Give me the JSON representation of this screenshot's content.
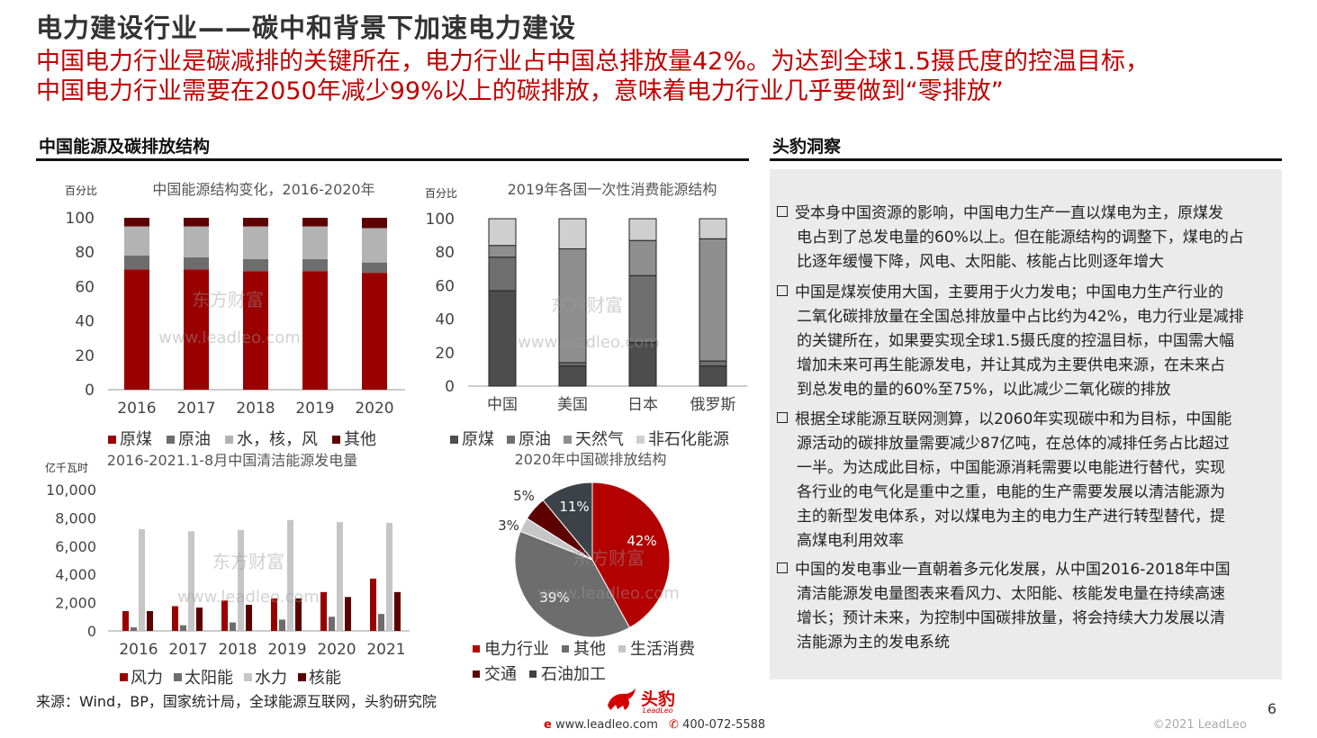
{
  "header": {
    "title": "电力建设行业——碳中和背景下加速电力建设",
    "subtitle_line1": "中国电力行业是碳减排的关键所在，电力行业占中国总排放量42%。为达到全球1.5摄氏度的控温目标，",
    "subtitle_line2": "中国电力行业需要在2050年减少99%以上的碳排放，意味着电力行业几乎要做到“零排放”"
  },
  "left_section": {
    "title": "中国能源及碳排放结构"
  },
  "right_section": {
    "title": "头豹洞察"
  },
  "watermark": {
    "cn": "东方财富",
    "url": "www.leadleo.com"
  },
  "colors": {
    "coal": "#9b0000",
    "oil": "#6d6d6d",
    "hydro": "#b3b3b3",
    "other": "#5c0000",
    "accent": "#c00000"
  },
  "insights": [
    {
      "lines": [
        "受本身中国资源的影响，中国电力生产一直以煤电为主，原煤发",
        "电占到了总发电量的60%以上。但在能源结构的调整下，煤电的占",
        "比逐年缓慢下降，风电、太阳能、核能占比则逐年增大"
      ]
    },
    {
      "lines": [
        "中国是煤炭使用大国，主要用于火力发电；中国电力生产行业的",
        "二氧化碳排放量在全国总排放量中占比约为42%，电力行业是减排",
        "的关键所在，如果要实现全球1.5摄氏度的控温目标，中国需大幅",
        "增加未来可再生能源发电，并让其成为主要供电来源，在未来占",
        "到总发电的量的60%至75%，以此减少二氧化碳的排放"
      ]
    },
    {
      "lines": [
        "根据全球能源互联网测算，以2060年实现碳中和为目标，中国能",
        "源活动的碳排放量需要减少87亿吨，在总体的减排任务占比超过",
        "一半。为达成此目标，中国能源消耗需要以电能进行替代，实现",
        "各行业的电气化是重中之重，电能的生产需要发展以清洁能源为",
        "主的新型发电体系，对以煤电为主的电力生产进行转型替代，提",
        "高煤电利用效率"
      ]
    },
    {
      "lines": [
        "中国的发电事业一直朝着多元化发展，从中国2016-2018年中国",
        "清洁能源发电量图表来看风力、太阳能、核能发电量在持续高速",
        "增长；预计未来，为控制中国碳排放量，将会持续大力发展以清",
        "洁能源为主的发电系统"
      ]
    }
  ],
  "footer": {
    "source": "来源：Wind，BP，国家统计局，全球能源互联网，头豹研究院",
    "logo_text": "头豹",
    "logo_sub": "LeadLeo",
    "website": "www.leadleo.com",
    "phone": "400-072-5588",
    "page": "6",
    "copyright": "©2021 LeadLeo"
  },
  "chart_data": [
    {
      "type": "bar",
      "stacked": true,
      "title": "中国能源结构变化，2016-2020年",
      "ylabel": "百分比",
      "ylim": [
        0,
        100
      ],
      "yticks": [
        0,
        20,
        40,
        60,
        80,
        100
      ],
      "categories": [
        "2016",
        "2017",
        "2018",
        "2019",
        "2020"
      ],
      "series": [
        {
          "name": "原煤",
          "color": "#9b0000",
          "values": [
            70,
            70,
            69,
            69,
            68
          ]
        },
        {
          "name": "原油",
          "color": "#6d6d6d",
          "values": [
            8,
            7,
            7,
            7,
            6
          ]
        },
        {
          "name": "水，核，风",
          "color": "#b3b3b3",
          "values": [
            17,
            18,
            19,
            19,
            20
          ]
        },
        {
          "name": "其他",
          "color": "#5c0000",
          "values": [
            5,
            5,
            5,
            5,
            6
          ]
        }
      ],
      "legend": "bottom"
    },
    {
      "type": "bar",
      "stacked": true,
      "title": "2019年各国一次性消费能源结构",
      "ylabel": "百分比",
      "ylim": [
        0,
        100
      ],
      "yticks": [
        0,
        20,
        40,
        60,
        80,
        100
      ],
      "categories": [
        "中国",
        "美国",
        "日本",
        "俄罗斯"
      ],
      "series": [
        {
          "name": "原煤",
          "color": "#4d4d4d",
          "values": [
            57,
            12,
            26,
            12
          ]
        },
        {
          "name": "原油",
          "color": "#6f6f6f",
          "values": [
            20,
            2,
            40,
            3
          ]
        },
        {
          "name": "天然气",
          "color": "#8e8e8e",
          "values": [
            7,
            68,
            21,
            73
          ]
        },
        {
          "name": "非石化能源",
          "color": "#cfcfcf",
          "values": [
            16,
            18,
            13,
            12
          ]
        }
      ],
      "legend": "bottom"
    },
    {
      "type": "bar",
      "title": "2016-2021.1-8月中国清洁能源发电量",
      "ylabel": "亿千瓦时",
      "ylim": [
        0,
        10000
      ],
      "yticks": [
        "0",
        "2,000",
        "4,000",
        "6,000",
        "8,000",
        "10,000"
      ],
      "categories": [
        "2016",
        "2017",
        "2018",
        "2019",
        "2020",
        "2021"
      ],
      "series": [
        {
          "name": "风力",
          "color": "#9b0000",
          "values": [
            1400,
            1750,
            2150,
            2300,
            2750,
            3700
          ]
        },
        {
          "name": "太阳能",
          "color": "#6d6d6d",
          "values": [
            250,
            400,
            600,
            800,
            1000,
            1200
          ]
        },
        {
          "name": "水力",
          "color": "#c6c6c6",
          "values": [
            7200,
            7050,
            7150,
            7850,
            7700,
            7650
          ]
        },
        {
          "name": "核能",
          "color": "#5c0000",
          "values": [
            1400,
            1650,
            1850,
            2300,
            2400,
            2750
          ]
        }
      ],
      "legend": "bottom"
    },
    {
      "type": "pie",
      "title": "2020年中国碳排放结构",
      "slices": [
        {
          "name": "电力行业",
          "value": 42,
          "label": "42%",
          "color": "#b30000"
        },
        {
          "name": "其他",
          "value": 39,
          "label": "39%",
          "color": "#6d6d6d"
        },
        {
          "name": "生活消费",
          "value": 3,
          "label": "3%",
          "color": "#c6c6c6"
        },
        {
          "name": "交通",
          "value": 5,
          "label": "5%",
          "color": "#5c0000"
        },
        {
          "name": "石油加工",
          "value": 11,
          "label": "11%",
          "color": "#3d4248"
        }
      ],
      "legend": "bottom"
    }
  ]
}
